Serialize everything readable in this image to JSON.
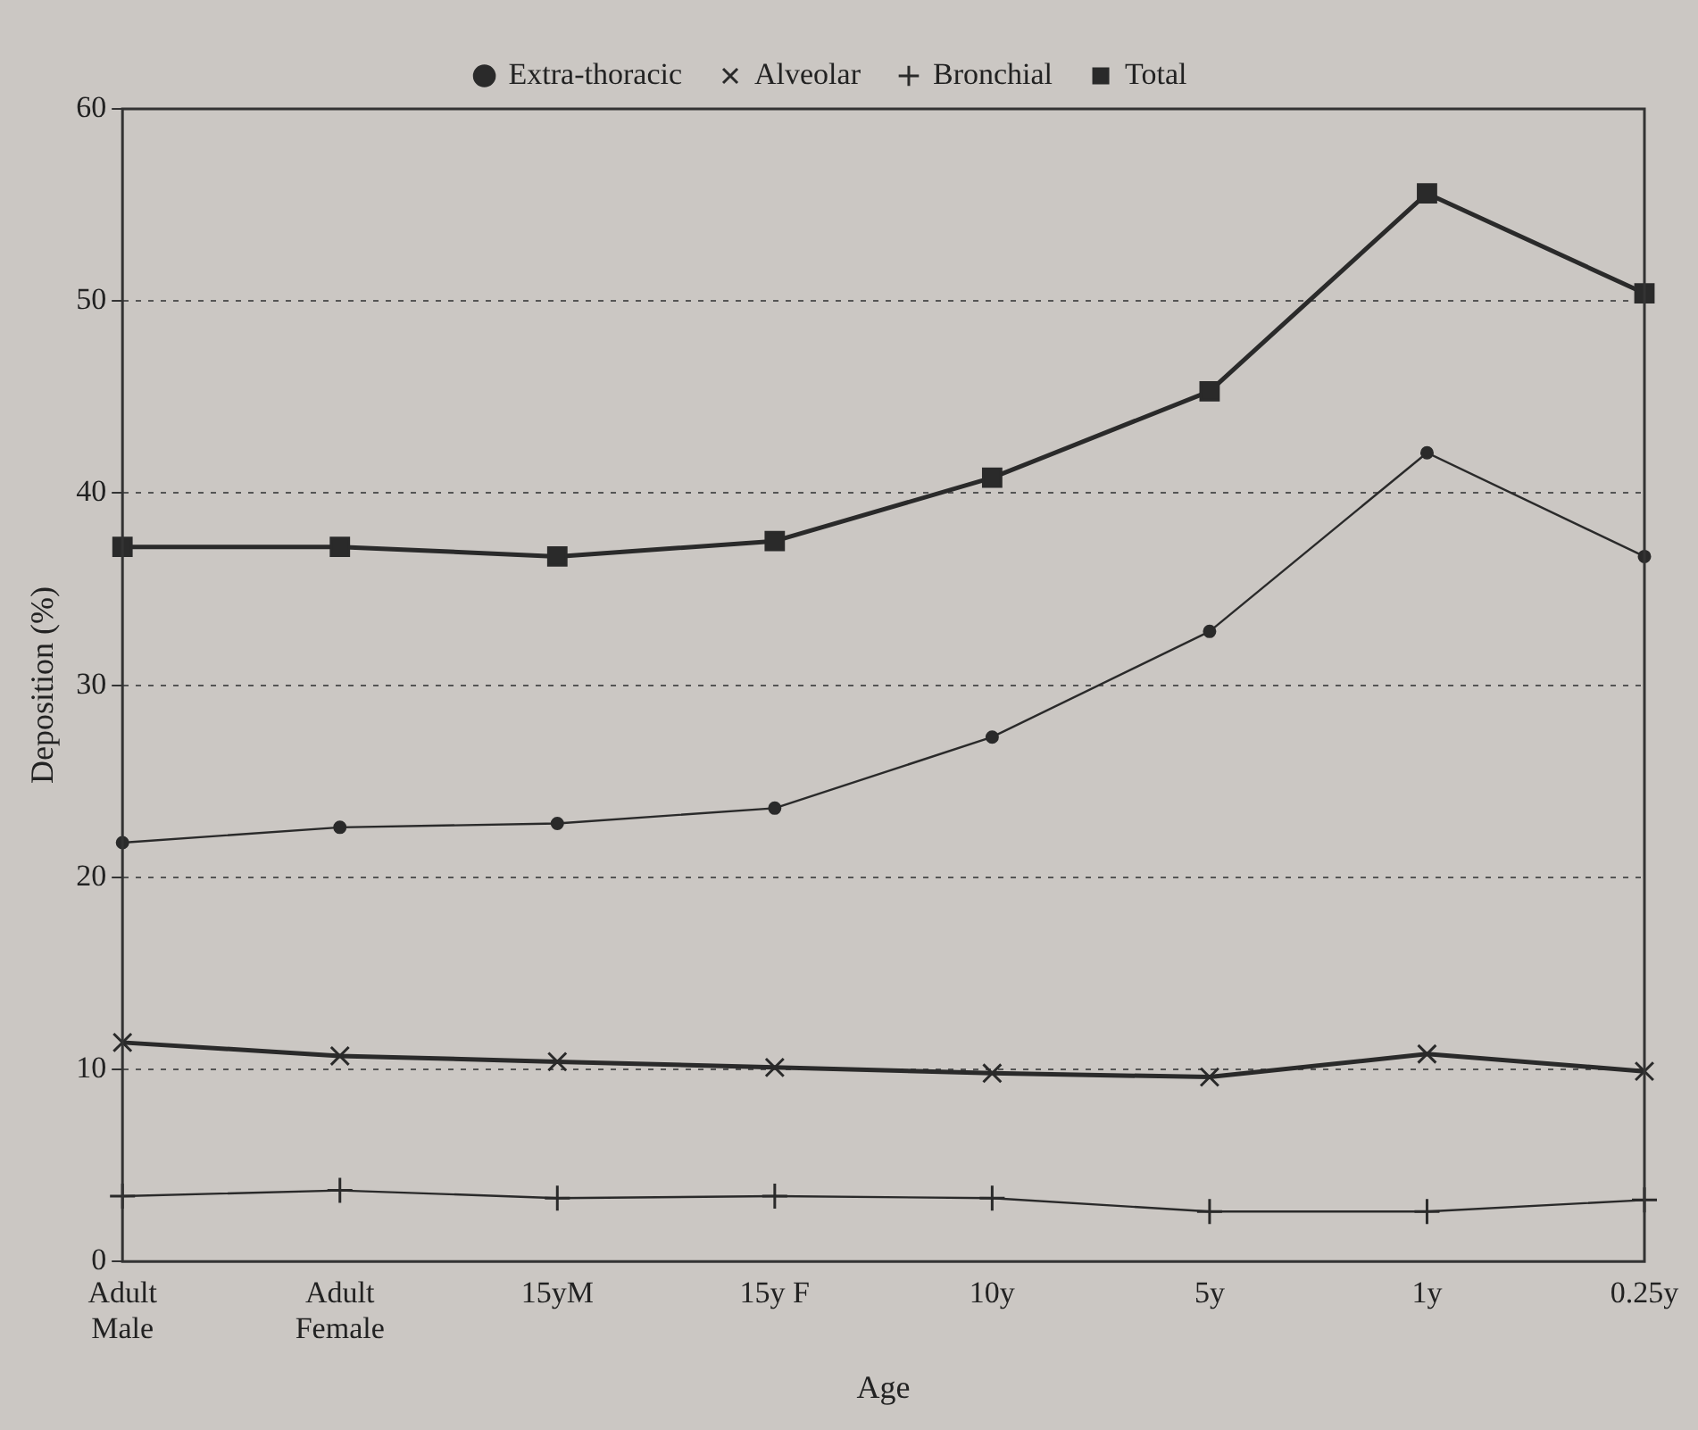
{
  "chart_data": {
    "type": "line",
    "xlabel": "Age",
    "ylabel": "Deposition (%)",
    "categories": [
      "Adult\nMale",
      "Adult\nFemale",
      "15yM",
      "15y F",
      "10y",
      "5y",
      "1y",
      "0.25y"
    ],
    "series": [
      {
        "name": "Extra-thoracic",
        "color": "#2a2a2a",
        "marker": "circle",
        "values": [
          21.8,
          22.6,
          22.8,
          23.6,
          27.3,
          32.8,
          42.1,
          36.7
        ]
      },
      {
        "name": "Alveolar",
        "color": "#2a2a2a",
        "marker": "cross",
        "values": [
          11.4,
          10.7,
          10.4,
          10.1,
          9.8,
          9.6,
          10.8,
          9.9
        ]
      },
      {
        "name": "Bronchial",
        "color": "#2a2a2a",
        "marker": "plus",
        "values": [
          3.4,
          3.7,
          3.3,
          3.4,
          3.3,
          2.6,
          2.6,
          3.2
        ]
      },
      {
        "name": "Total",
        "color": "#2a2a2a",
        "marker": "square",
        "values": [
          37.2,
          37.2,
          36.7,
          37.5,
          40.8,
          45.3,
          55.6,
          50.4
        ]
      }
    ],
    "ylim": [
      0,
      60
    ],
    "yticks": [
      0,
      10,
      20,
      30,
      40,
      50,
      60
    ],
    "grid": "y",
    "legend": "top",
    "line_style": "solid"
  }
}
